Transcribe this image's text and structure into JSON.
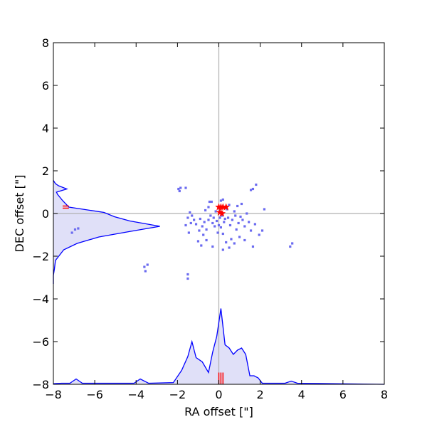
{
  "chart_data": {
    "type": "scatter",
    "title": "",
    "xlabel": "RA offset [\"]",
    "ylabel": "DEC offset [\"]",
    "xlim": [
      -8,
      8
    ],
    "ylim": [
      -8,
      8
    ],
    "xticks": [
      "−8",
      "−6",
      "−4",
      "−2",
      "0",
      "2",
      "4",
      "6",
      "8"
    ],
    "yticks": [
      "−8",
      "−6",
      "−4",
      "−2",
      "0",
      "2",
      "4",
      "6",
      "8"
    ],
    "xtick_values": [
      -8,
      -6,
      -4,
      -2,
      0,
      2,
      4,
      6,
      8
    ],
    "ytick_values": [
      -8,
      -6,
      -4,
      -2,
      0,
      2,
      4,
      6,
      8
    ],
    "grid": false,
    "reference_lines": {
      "x": 0,
      "y": 0,
      "color": "#b0b0b0"
    },
    "colors": {
      "points": "#6b6bf0",
      "histogram_line": "#0000ff",
      "histogram_fill": "#e0e0f8",
      "markers": "#ff0000"
    },
    "series": [
      {
        "kind": "points",
        "points": [
          [
            -1.95,
            1.15
          ],
          [
            -1.85,
            1.2
          ],
          [
            -1.9,
            1.05
          ],
          [
            -1.6,
            1.2
          ],
          [
            -0.45,
            0.55
          ],
          [
            -0.35,
            0.55
          ],
          [
            -0.5,
            0.3
          ],
          [
            0.1,
            0.6
          ],
          [
            0.2,
            0.65
          ],
          [
            1.55,
            1.1
          ],
          [
            1.65,
            1.15
          ],
          [
            1.8,
            1.35
          ],
          [
            2.2,
            0.2
          ],
          [
            -1.4,
            0.05
          ],
          [
            -1.3,
            -0.1
          ],
          [
            -1.5,
            -0.2
          ],
          [
            -1.2,
            -0.3
          ],
          [
            -1.35,
            -0.45
          ],
          [
            -1.1,
            -0.5
          ],
          [
            -0.9,
            -0.25
          ],
          [
            -0.8,
            -0.6
          ],
          [
            -0.95,
            -0.8
          ],
          [
            -0.75,
            -1.0
          ],
          [
            -0.6,
            -0.75
          ],
          [
            -0.5,
            -0.3
          ],
          [
            -0.4,
            -0.1
          ],
          [
            -0.3,
            -0.45
          ],
          [
            -0.2,
            -0.6
          ],
          [
            -0.25,
            -0.2
          ],
          [
            -0.1,
            -0.35
          ],
          [
            0.0,
            -0.55
          ],
          [
            0.05,
            -0.2
          ],
          [
            0.15,
            -0.1
          ],
          [
            0.25,
            -0.4
          ],
          [
            0.3,
            -0.25
          ],
          [
            0.1,
            -0.65
          ],
          [
            -0.05,
            -0.9
          ],
          [
            0.2,
            -0.95
          ],
          [
            0.45,
            -0.2
          ],
          [
            0.55,
            -0.55
          ],
          [
            0.65,
            -0.3
          ],
          [
            0.75,
            0.1
          ],
          [
            0.8,
            -0.1
          ],
          [
            0.95,
            -0.45
          ],
          [
            1.05,
            -0.15
          ],
          [
            1.15,
            -0.3
          ],
          [
            1.25,
            -0.6
          ],
          [
            1.35,
            0.0
          ],
          [
            1.45,
            -0.4
          ],
          [
            0.9,
            0.35
          ],
          [
            1.1,
            0.45
          ],
          [
            0.4,
            0.2
          ],
          [
            0.5,
            0.4
          ],
          [
            -0.15,
            0.1
          ],
          [
            -0.65,
            0.15
          ],
          [
            -1.0,
            -1.3
          ],
          [
            -0.85,
            -1.5
          ],
          [
            -0.6,
            -1.25
          ],
          [
            0.35,
            -1.35
          ],
          [
            0.6,
            -1.2
          ],
          [
            0.75,
            -1.4
          ],
          [
            1.0,
            -1.1
          ],
          [
            1.25,
            -1.25
          ],
          [
            0.5,
            -1.6
          ],
          [
            0.2,
            -1.7
          ],
          [
            -0.3,
            -1.55
          ],
          [
            -1.45,
            -0.9
          ],
          [
            -1.6,
            -0.55
          ],
          [
            -0.7,
            -0.4
          ],
          [
            0.85,
            -0.75
          ],
          [
            1.55,
            -0.8
          ],
          [
            1.75,
            -0.5
          ],
          [
            1.95,
            -1.0
          ],
          [
            2.1,
            -0.8
          ],
          [
            1.65,
            -1.55
          ],
          [
            -1.5,
            -2.85
          ],
          [
            -1.5,
            -3.05
          ],
          [
            -3.6,
            -2.5
          ],
          [
            -3.55,
            -2.7
          ],
          [
            -3.45,
            -2.4
          ],
          [
            -6.95,
            -0.75
          ],
          [
            -7.1,
            -0.9
          ],
          [
            -6.8,
            -0.7
          ],
          [
            3.45,
            -1.55
          ],
          [
            3.55,
            -1.4
          ]
        ]
      },
      {
        "kind": "star-markers",
        "points": [
          [
            0.0,
            0.3
          ],
          [
            0.1,
            0.3
          ],
          [
            0.2,
            0.3
          ],
          [
            0.35,
            0.3
          ],
          [
            0.05,
            0.05
          ],
          [
            0.15,
            0.0
          ]
        ]
      },
      {
        "kind": "ra-histogram",
        "x": [
          -8.0,
          -7.6,
          -7.2,
          -6.9,
          -6.6,
          -4.1,
          -3.8,
          -3.4,
          -2.2,
          -1.8,
          -1.5,
          -1.3,
          -1.1,
          -0.8,
          -0.5,
          -0.3,
          -0.1,
          0.1,
          0.3,
          0.5,
          0.7,
          0.9,
          1.1,
          1.3,
          1.5,
          1.7,
          1.9,
          2.1,
          2.3,
          3.2,
          3.5,
          3.8,
          8.0
        ],
        "y": [
          -7.97,
          -7.95,
          -7.95,
          -7.75,
          -7.95,
          -7.95,
          -7.75,
          -7.95,
          -7.92,
          -7.35,
          -6.7,
          -6.0,
          -6.75,
          -6.95,
          -7.45,
          -6.5,
          -5.75,
          -4.45,
          -6.15,
          -6.3,
          -6.6,
          -6.4,
          -6.3,
          -6.6,
          -7.6,
          -7.6,
          -7.7,
          -7.95,
          -7.95,
          -7.95,
          -7.85,
          -7.95,
          -8.0
        ]
      },
      {
        "kind": "dec-histogram",
        "y": [
          1.55,
          1.4,
          1.3,
          1.15,
          1.0,
          0.9,
          0.6,
          0.3,
          0.05,
          -0.15,
          -0.35,
          -0.6,
          -0.85,
          -1.1,
          -1.4,
          -1.7,
          -2.2,
          -2.6,
          -2.9,
          -3.3
        ],
        "x": [
          -8.0,
          -7.9,
          -7.75,
          -7.35,
          -7.85,
          -7.8,
          -7.55,
          -7.25,
          -5.55,
          -5.05,
          -4.3,
          -2.85,
          -4.35,
          -5.8,
          -6.85,
          -7.5,
          -7.9,
          -7.95,
          -8.0,
          -8.0
        ]
      },
      {
        "kind": "ra-error-ticks",
        "x": [
          0.0,
          0.1,
          0.2
        ],
        "y_range": [
          -8.0,
          -7.45
        ]
      },
      {
        "kind": "dec-error-ticks",
        "y": [
          0.35,
          0.25
        ],
        "x_range": [
          -7.55,
          -7.25
        ]
      }
    ]
  }
}
